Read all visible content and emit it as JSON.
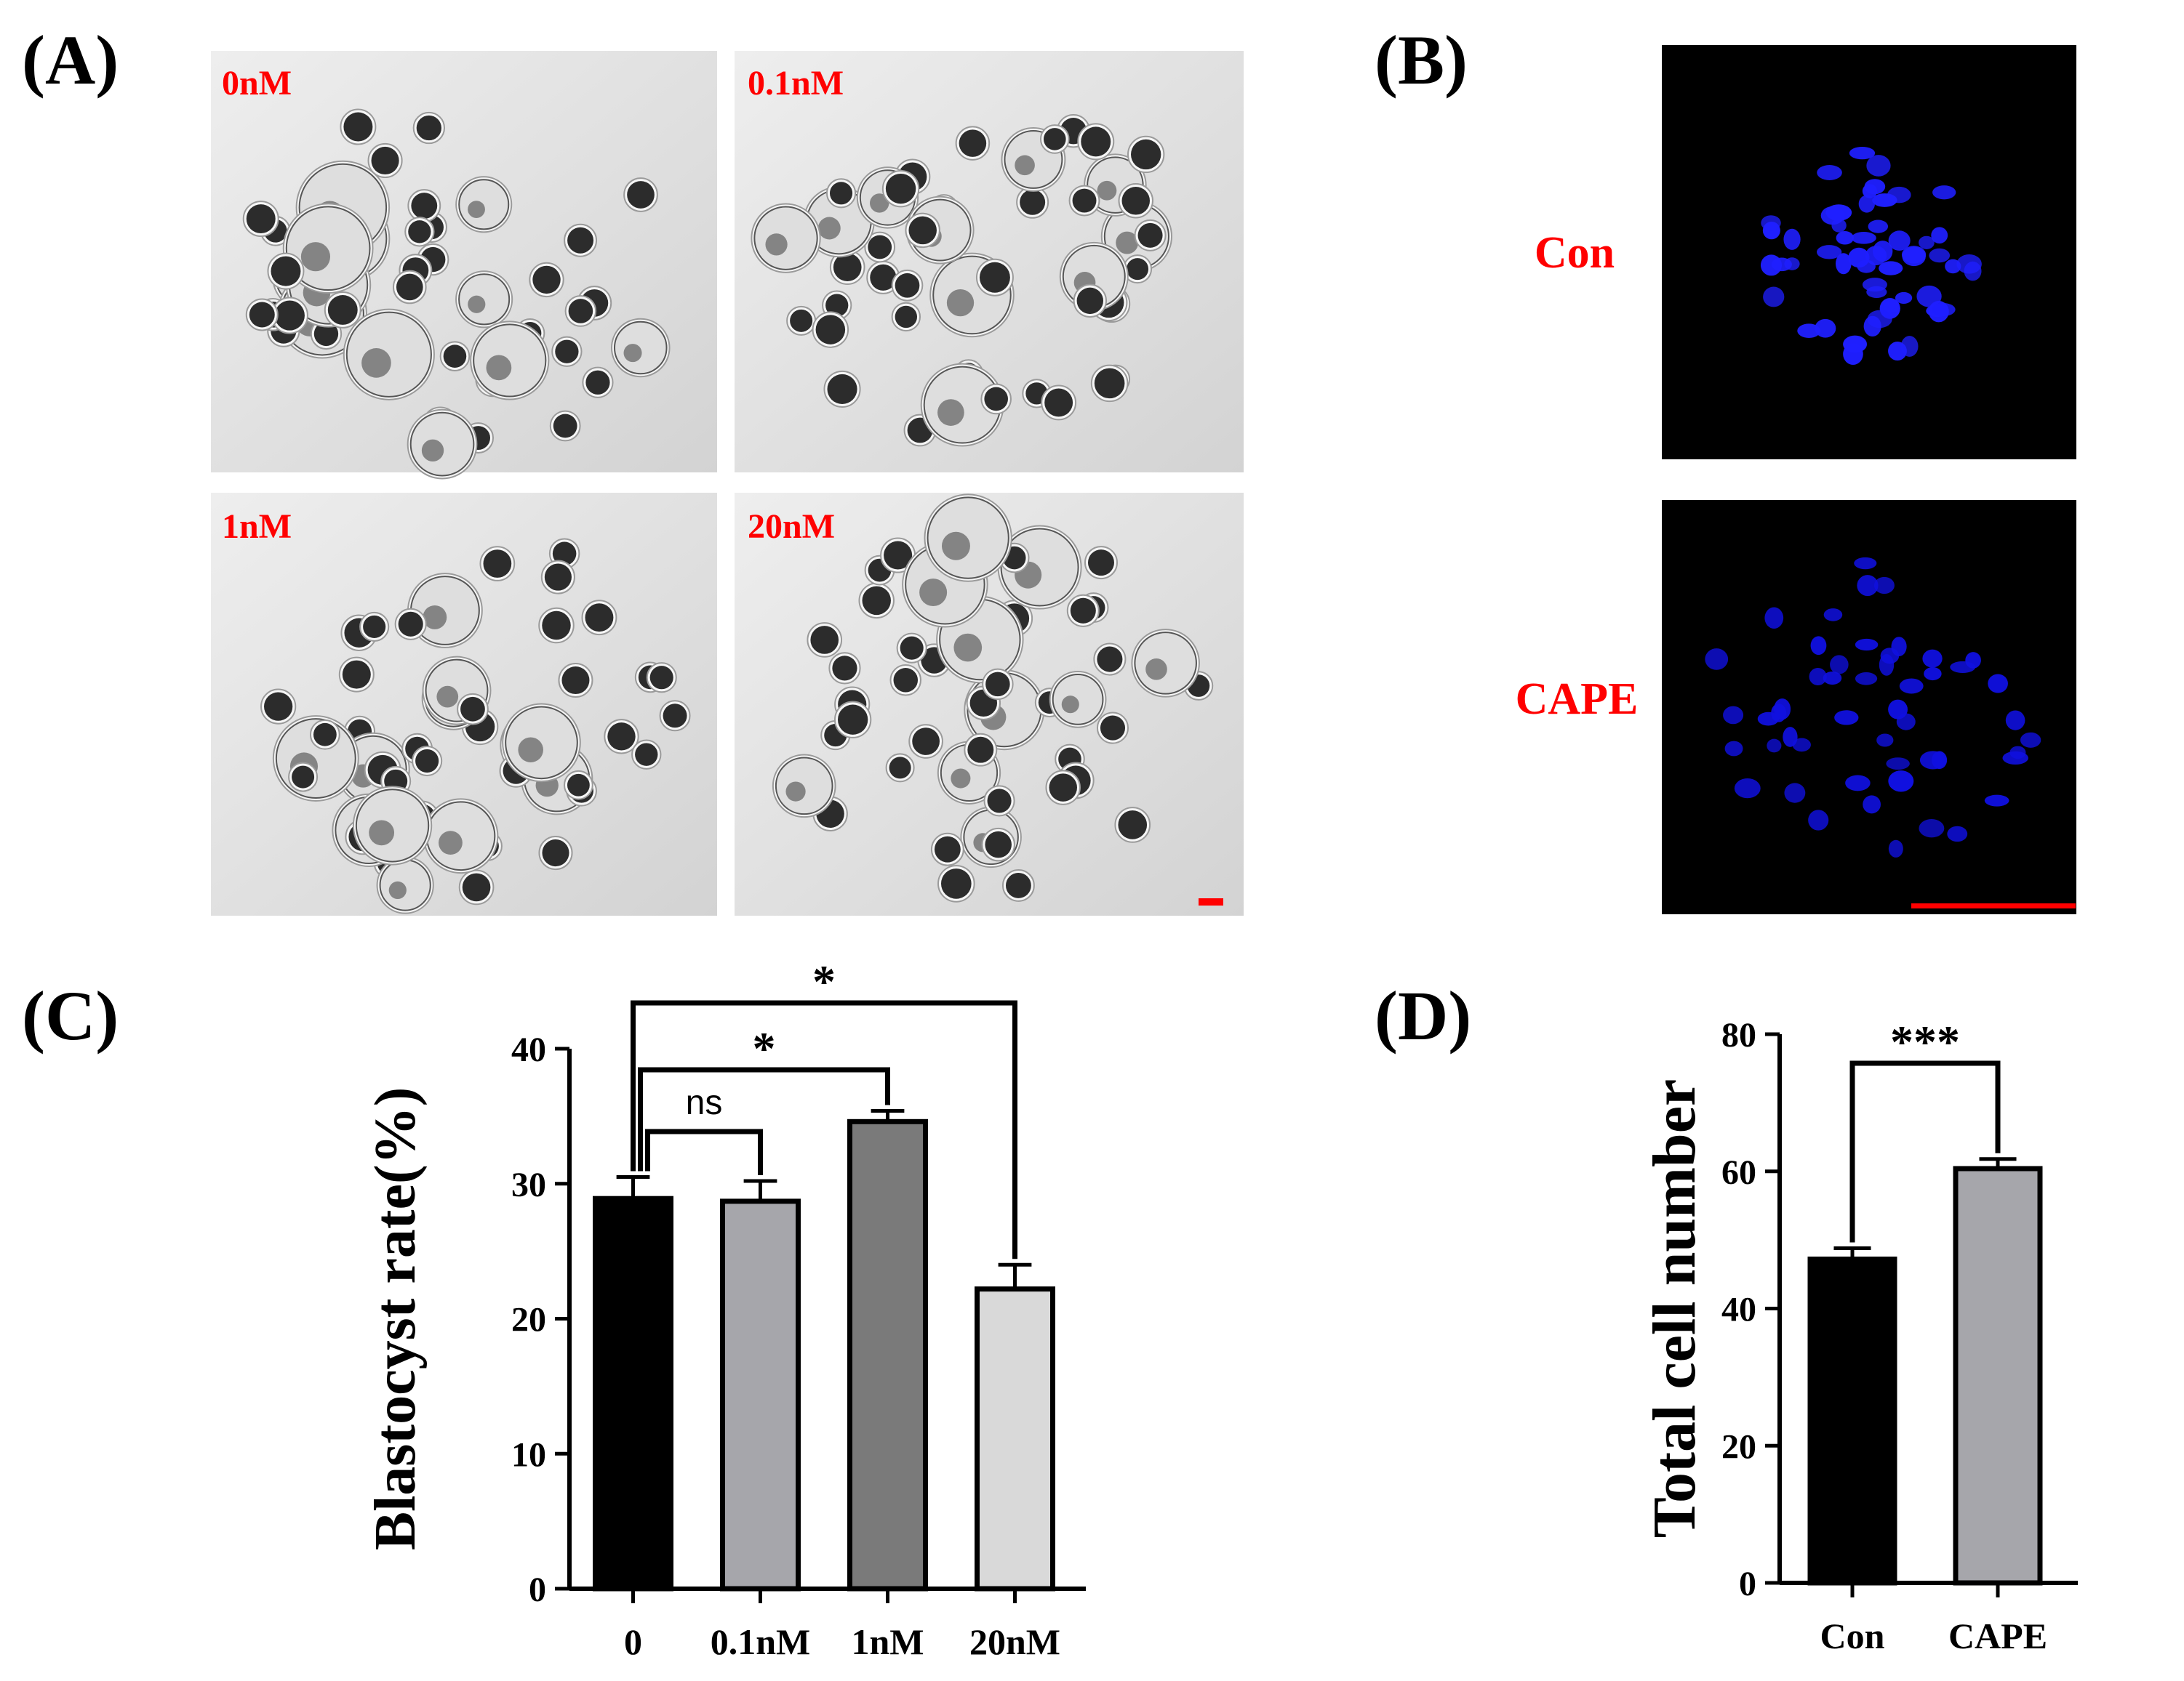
{
  "panels": {
    "a": {
      "label": "(A)",
      "images": [
        "0nM",
        "0.1nM",
        "1nM",
        "20nM"
      ]
    },
    "b": {
      "label": "(B)",
      "rows": [
        "Con",
        "CAPE"
      ]
    },
    "c": {
      "label": "(C)"
    },
    "d": {
      "label": "(D)"
    }
  },
  "colors": {
    "label_red": "#ff0000",
    "nuclei_blue": "#1a1aff",
    "black": "#000000",
    "micrograph_bg": "#e2e2e2"
  },
  "chart_data": [
    {
      "type": "bar",
      "panel": "C",
      "ylabel": "Blastocyst rate(%)",
      "xlabel": "",
      "categories": [
        "0",
        "0.1nM",
        "1nM",
        "20nM"
      ],
      "values": [
        28.9,
        28.7,
        34.6,
        22.2
      ],
      "errors": [
        1.6,
        1.5,
        0.8,
        1.8
      ],
      "bar_colors": [
        "#000000",
        "#a6a6ab",
        "#7a7a7a",
        "#d9d9d9"
      ],
      "ylim": [
        0,
        40
      ],
      "yticks": [
        "0",
        "10",
        "20",
        "30",
        "40"
      ],
      "comparisons": [
        {
          "from": "0",
          "to": "0.1nM",
          "label": "ns"
        },
        {
          "from": "0",
          "to": "1nM",
          "label": "*"
        },
        {
          "from": "0",
          "to": "20nM",
          "label": "*"
        }
      ]
    },
    {
      "type": "bar",
      "panel": "D",
      "ylabel": "Total cell number",
      "xlabel": "",
      "categories": [
        "Con",
        "CAPE"
      ],
      "values": [
        47.2,
        60.4
      ],
      "errors": [
        1.6,
        1.4
      ],
      "bar_colors": [
        "#000000",
        "#a6a6ab"
      ],
      "ylim": [
        0,
        80
      ],
      "yticks": [
        "0",
        "20",
        "40",
        "60",
        "80"
      ],
      "comparisons": [
        {
          "from": "Con",
          "to": "CAPE",
          "label": "***"
        }
      ]
    }
  ]
}
